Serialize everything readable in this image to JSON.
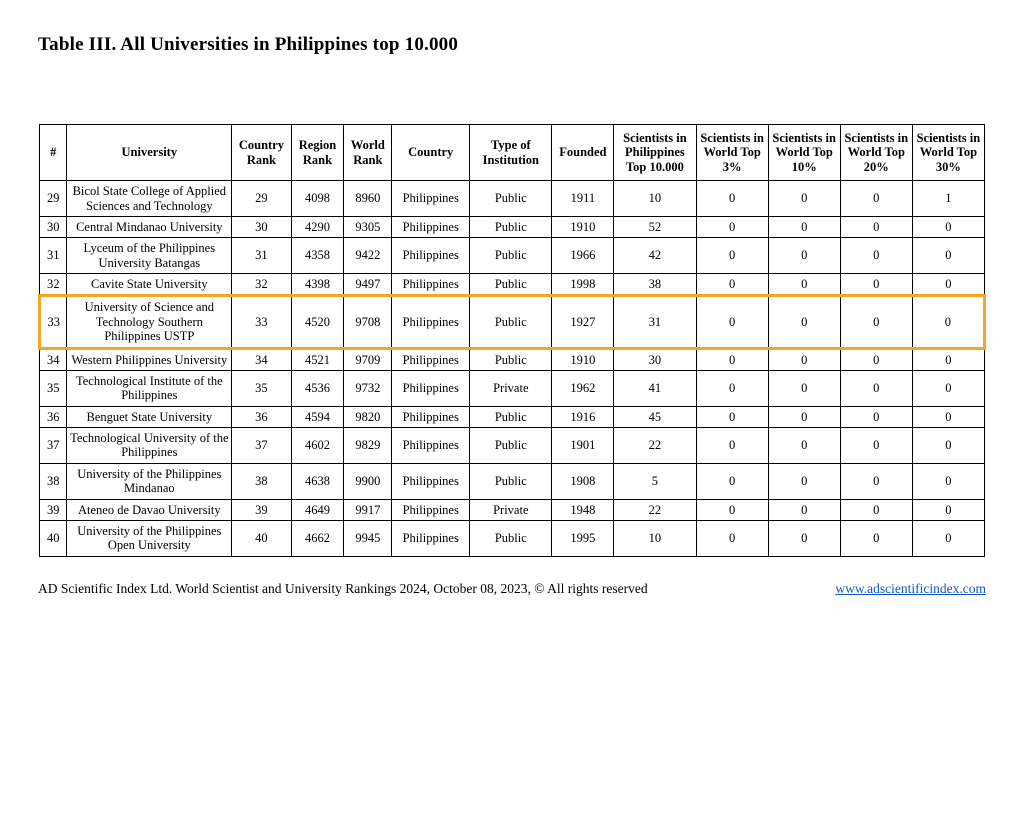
{
  "title": "Table III. All Universities in Philippines top 10.000",
  "highlight_color": "#f5a623",
  "highlight_row_num": "33",
  "columns": [
    "#",
    "University",
    "Country Rank",
    "Region Rank",
    "World Rank",
    "Country",
    "Type of Institution",
    "Founded",
    "Scientists in Philippines Top 10.000",
    "Scientists in World Top 3%",
    "Scientists in World Top 10%",
    "Scientists in World Top 20%",
    "Scientists in World Top 30%"
  ],
  "rows": [
    {
      "num": "29",
      "university": "Bicol State College of Applied Sciences and Technology",
      "country_rank": "29",
      "region_rank": "4098",
      "world_rank": "8960",
      "country": "Philippines",
      "type": "Public",
      "founded": "1911",
      "sci_ph": "10",
      "sci3": "0",
      "sci10": "0",
      "sci20": "0",
      "sci30": "1"
    },
    {
      "num": "30",
      "university": "Central Mindanao University",
      "country_rank": "30",
      "region_rank": "4290",
      "world_rank": "9305",
      "country": "Philippines",
      "type": "Public",
      "founded": "1910",
      "sci_ph": "52",
      "sci3": "0",
      "sci10": "0",
      "sci20": "0",
      "sci30": "0"
    },
    {
      "num": "31",
      "university": "Lyceum of the Philippines University Batangas",
      "country_rank": "31",
      "region_rank": "4358",
      "world_rank": "9422",
      "country": "Philippines",
      "type": "Public",
      "founded": "1966",
      "sci_ph": "42",
      "sci3": "0",
      "sci10": "0",
      "sci20": "0",
      "sci30": "0"
    },
    {
      "num": "32",
      "university": "Cavite State University",
      "country_rank": "32",
      "region_rank": "4398",
      "world_rank": "9497",
      "country": "Philippines",
      "type": "Public",
      "founded": "1998",
      "sci_ph": "38",
      "sci3": "0",
      "sci10": "0",
      "sci20": "0",
      "sci30": "0"
    },
    {
      "num": "33",
      "university": "University of Science and Technology Southern Philippines USTP",
      "country_rank": "33",
      "region_rank": "4520",
      "world_rank": "9708",
      "country": "Philippines",
      "type": "Public",
      "founded": "1927",
      "sci_ph": "31",
      "sci3": "0",
      "sci10": "0",
      "sci20": "0",
      "sci30": "0"
    },
    {
      "num": "34",
      "university": "Western Philippines University",
      "country_rank": "34",
      "region_rank": "4521",
      "world_rank": "9709",
      "country": "Philippines",
      "type": "Public",
      "founded": "1910",
      "sci_ph": "30",
      "sci3": "0",
      "sci10": "0",
      "sci20": "0",
      "sci30": "0"
    },
    {
      "num": "35",
      "university": "Technological Institute of the Philippines",
      "country_rank": "35",
      "region_rank": "4536",
      "world_rank": "9732",
      "country": "Philippines",
      "type": "Private",
      "founded": "1962",
      "sci_ph": "41",
      "sci3": "0",
      "sci10": "0",
      "sci20": "0",
      "sci30": "0"
    },
    {
      "num": "36",
      "university": "Benguet State University",
      "country_rank": "36",
      "region_rank": "4594",
      "world_rank": "9820",
      "country": "Philippines",
      "type": "Public",
      "founded": "1916",
      "sci_ph": "45",
      "sci3": "0",
      "sci10": "0",
      "sci20": "0",
      "sci30": "0"
    },
    {
      "num": "37",
      "university": "Technological University of the Philippines",
      "country_rank": "37",
      "region_rank": "4602",
      "world_rank": "9829",
      "country": "Philippines",
      "type": "Public",
      "founded": "1901",
      "sci_ph": "22",
      "sci3": "0",
      "sci10": "0",
      "sci20": "0",
      "sci30": "0"
    },
    {
      "num": "38",
      "university": "University of the Philippines Mindanao",
      "country_rank": "38",
      "region_rank": "4638",
      "world_rank": "9900",
      "country": "Philippines",
      "type": "Public",
      "founded": "1908",
      "sci_ph": "5",
      "sci3": "0",
      "sci10": "0",
      "sci20": "0",
      "sci30": "0"
    },
    {
      "num": "39",
      "university": "Ateneo de Davao University",
      "country_rank": "39",
      "region_rank": "4649",
      "world_rank": "9917",
      "country": "Philippines",
      "type": "Private",
      "founded": "1948",
      "sci_ph": "22",
      "sci3": "0",
      "sci10": "0",
      "sci20": "0",
      "sci30": "0"
    },
    {
      "num": "40",
      "university": "University of the Philippines Open University",
      "country_rank": "40",
      "region_rank": "4662",
      "world_rank": "9945",
      "country": "Philippines",
      "type": "Public",
      "founded": "1995",
      "sci_ph": "10",
      "sci3": "0",
      "sci10": "0",
      "sci20": "0",
      "sci30": "0"
    }
  ],
  "footer_source": "AD Scientific Index Ltd. World Scientist and University Rankings 2024, October 08, 2023, © All rights reserved",
  "footer_link_text": "www.adscientificindex.com"
}
